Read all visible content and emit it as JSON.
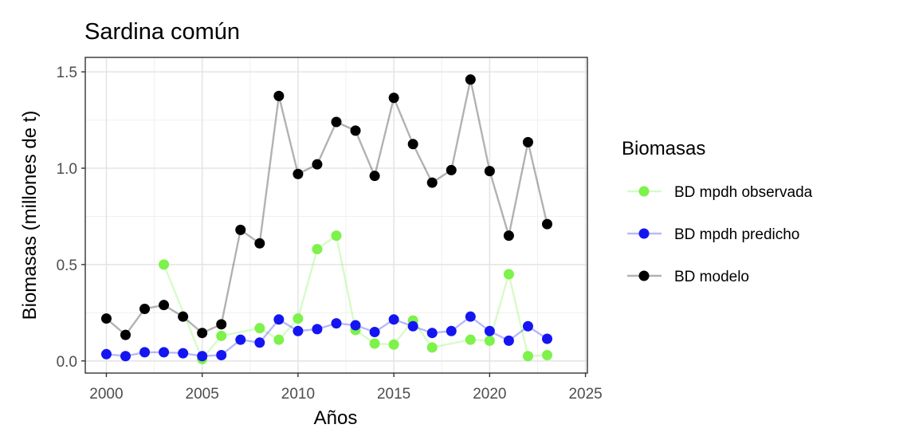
{
  "chart_data": {
    "type": "line",
    "title": "Sardina común",
    "xlabel": "Años",
    "ylabel": "Biomasas (millones de t)",
    "xlim": [
      1998.9,
      2025.1
    ],
    "ylim": [
      -0.063,
      1.575
    ],
    "xticks": [
      2000,
      2005,
      2010,
      2015,
      2020,
      2025
    ],
    "xtick_labels": [
      "2000",
      "2005",
      "2010",
      "2015",
      "2020",
      "2025"
    ],
    "yticks": [
      0.0,
      0.5,
      1.0,
      1.5
    ],
    "ytick_labels": [
      "0.0",
      "0.5",
      "1.0",
      "1.5"
    ],
    "grid": true,
    "legend": {
      "title": "Biomasas",
      "position": "right"
    },
    "series": [
      {
        "name": "BD mpdh observada",
        "color": "#7CF24A",
        "x": [
          2003,
          2005,
          2006,
          2008,
          2009,
          2010,
          2011,
          2012,
          2013,
          2014,
          2015,
          2016,
          2017,
          2019,
          2020,
          2021,
          2022,
          2023
        ],
        "values": [
          0.5,
          0.01,
          0.13,
          0.17,
          0.11,
          0.22,
          0.58,
          0.65,
          0.16,
          0.09,
          0.085,
          0.21,
          0.07,
          0.11,
          0.105,
          0.45,
          0.025,
          0.03
        ]
      },
      {
        "name": "BD mpdh predicho",
        "color": "#1515F2",
        "x": [
          2000,
          2001,
          2002,
          2003,
          2004,
          2005,
          2006,
          2007,
          2008,
          2009,
          2010,
          2011,
          2012,
          2013,
          2014,
          2015,
          2016,
          2017,
          2018,
          2019,
          2020,
          2021,
          2022,
          2023
        ],
        "values": [
          0.035,
          0.025,
          0.045,
          0.045,
          0.04,
          0.025,
          0.03,
          0.11,
          0.095,
          0.215,
          0.155,
          0.165,
          0.195,
          0.185,
          0.15,
          0.215,
          0.18,
          0.145,
          0.155,
          0.23,
          0.155,
          0.105,
          0.18,
          0.115
        ]
      },
      {
        "name": "BD modelo",
        "color": "#000000",
        "x": [
          2000,
          2001,
          2002,
          2003,
          2004,
          2005,
          2006,
          2007,
          2008,
          2009,
          2010,
          2011,
          2012,
          2013,
          2014,
          2015,
          2016,
          2017,
          2018,
          2019,
          2020,
          2021,
          2022,
          2023
        ],
        "values": [
          0.22,
          0.135,
          0.27,
          0.29,
          0.23,
          0.145,
          0.19,
          0.68,
          0.61,
          1.375,
          0.97,
          1.02,
          1.24,
          1.195,
          0.96,
          1.365,
          1.125,
          0.925,
          0.99,
          1.46,
          0.985,
          0.65,
          1.135,
          0.71
        ]
      }
    ]
  }
}
